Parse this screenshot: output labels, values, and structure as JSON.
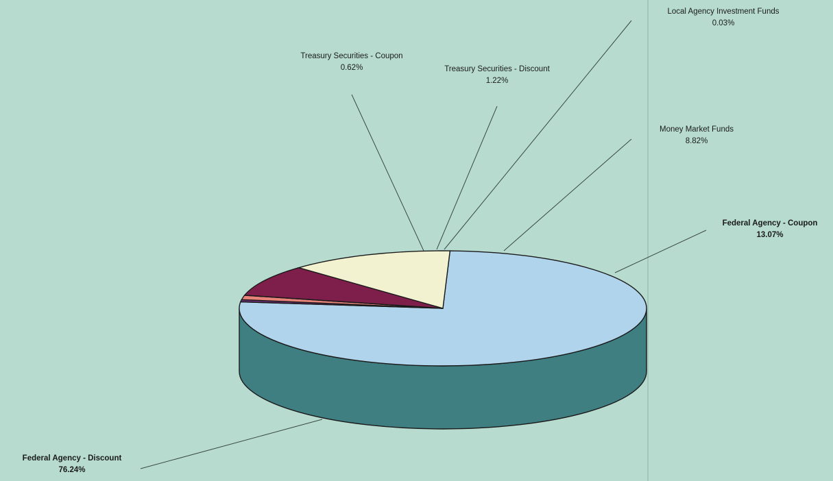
{
  "chart_data": {
    "type": "pie",
    "style": "3d",
    "slices": [
      {
        "label": "Federal Agency - Discount",
        "value_text": "76.24%",
        "value": 76.24,
        "color": "#b0d4ec",
        "side_color": "#3f7f82"
      },
      {
        "label": "Treasury Securities - Coupon",
        "value_text": "0.62%",
        "value": 0.62,
        "color": "#6e2d74",
        "side_color": "#4a1e50"
      },
      {
        "label": "Treasury Securities - Discount",
        "value_text": "1.22%",
        "value": 1.22,
        "color": "#e8837a",
        "side_color": "#a05a55"
      },
      {
        "label": "Local Agency Investment Funds",
        "value_text": "0.03%",
        "value": 0.03,
        "color": "#c9c0d6",
        "side_color": "#8a8496"
      },
      {
        "label": "Money Market Funds",
        "value_text": "8.82%",
        "value": 8.82,
        "color": "#7e1f4b",
        "side_color": "#561535"
      },
      {
        "label": "Federal Agency - Coupon",
        "value_text": "13.07%",
        "value": 13.07,
        "color": "#f3f2d0",
        "side_color": "#a9a88e"
      }
    ]
  }
}
